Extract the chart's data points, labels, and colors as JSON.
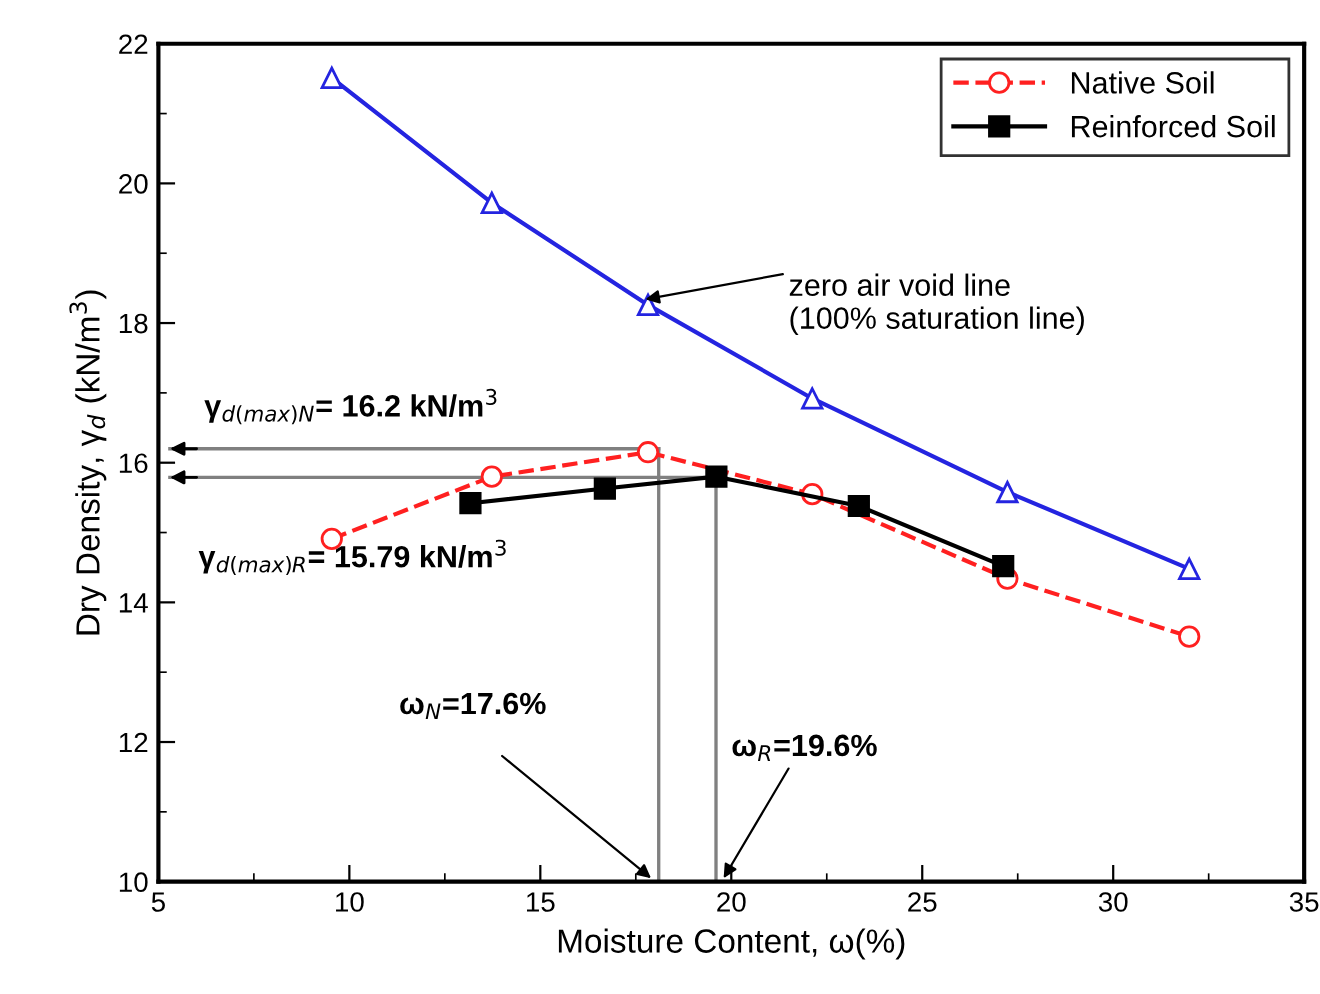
{
  "chart_data": {
    "type": "line",
    "xlabel": "Moisture Content, ω(%)",
    "ylabel": "Dry Density, γ$_{d}$ (kN/m$^{3}$)",
    "xlim": [
      5,
      35
    ],
    "xticks": [
      5,
      10,
      15,
      20,
      25,
      30,
      35
    ],
    "ylim": [
      10,
      22
    ],
    "yticks": [
      10,
      12,
      14,
      16,
      18,
      20,
      22
    ],
    "grid": false,
    "legend": "top right",
    "series": [
      {
        "color": "#2424e0",
        "marker": "triangle",
        "line_style": "solid",
        "x": [
          9.54,
          13.73,
          17.82,
          22.12,
          27.23,
          31.99
        ],
        "values": [
          21.51,
          19.72,
          18.26,
          16.92,
          15.58,
          14.48
        ]
      },
      {
        "name": "Native Soil",
        "color": "#ff2020",
        "marker": "circle",
        "line_style": "dashed",
        "x": [
          9.54,
          13.73,
          17.82,
          22.12,
          27.23,
          31.99
        ],
        "values": [
          14.91,
          15.8,
          16.15,
          15.55,
          14.34,
          13.51
        ]
      },
      {
        "name": "Reinforced Soil",
        "color": "#000000",
        "marker": "square",
        "line_style": "solid",
        "x": [
          13.17,
          16.69,
          19.61,
          23.34,
          27.12
        ],
        "values": [
          15.42,
          15.63,
          15.8,
          15.38,
          14.52
        ]
      }
    ],
    "ref_lines": [
      {
        "axis": "y",
        "value": 16.2,
        "color": "#808080"
      },
      {
        "axis": "y",
        "value": 15.79,
        "color": "#808080"
      },
      {
        "axis": "x",
        "value": 18.1,
        "color": "#808080"
      },
      {
        "axis": "x",
        "value": 19.6,
        "color": "#808080"
      }
    ],
    "annotations": [
      {
        "text": "zero air void line\n(100% saturation line)",
        "x": 17.75,
        "y": 18.34
      },
      "γ$_{d(max)N}$= 16.2 kN/m$^{3}$",
      "γ$_{d(max)R}$= 15.79 kN/m$^{3}$",
      {
        "text": "ω$_{N}$=17.6%",
        "x": 17.9,
        "y": 10.05
      },
      {
        "text": "ω$_{R}$=19.6%",
        "x": 19.8,
        "y": 10.05
      }
    ]
  }
}
